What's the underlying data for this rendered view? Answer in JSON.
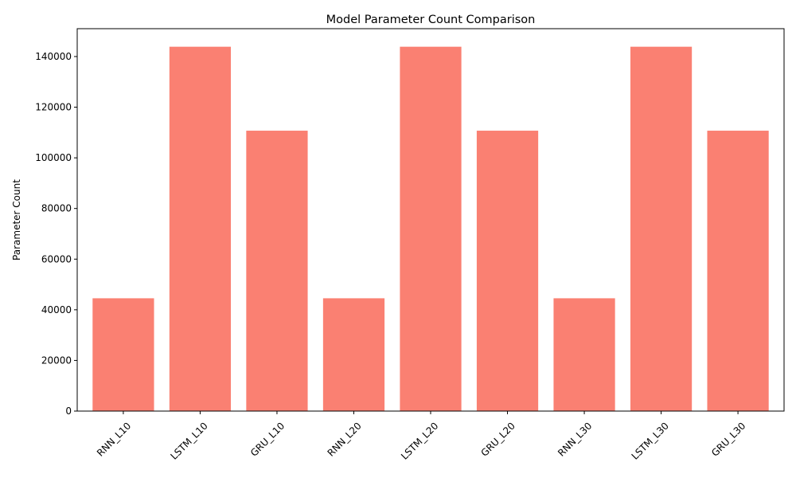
{
  "chart_data": {
    "type": "bar",
    "title": "Model Parameter Count Comparison",
    "xlabel": "",
    "ylabel": "Parameter Count",
    "categories": [
      "RNN_L10",
      "LSTM_L10",
      "GRU_L10",
      "RNN_L20",
      "LSTM_L20",
      "GRU_L20",
      "RNN_L30",
      "LSTM_L30",
      "GRU_L30"
    ],
    "values": [
      44545,
      143873,
      110721,
      44545,
      143873,
      110721,
      44545,
      143873,
      110721
    ],
    "ylim": [
      0,
      151000
    ],
    "yticks": [
      0,
      20000,
      40000,
      60000,
      80000,
      100000,
      120000,
      140000
    ],
    "x_tick_rotation": 45,
    "grid": false,
    "legend": "none",
    "bar_color": "#fa8072"
  }
}
